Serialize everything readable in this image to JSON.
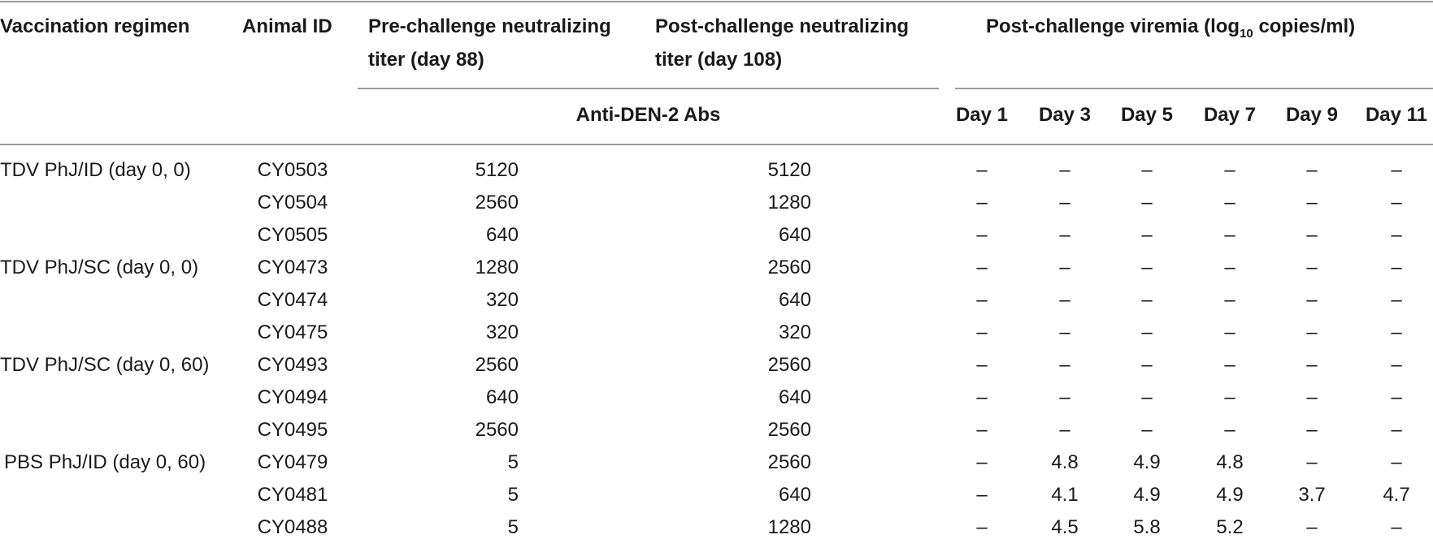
{
  "headers": {
    "regimen": "Vaccination regimen",
    "animal": "Animal ID",
    "pre_line1": "Pre-challenge neutralizing",
    "pre_line2": "titer (day 88)",
    "post_line1": "Post-challenge neutralizing",
    "post_line2": "titer (day 108)",
    "viremia_pre": "Post-challenge viremia (log",
    "viremia_sub": "10",
    "viremia_post": " copies/ml)",
    "abs": "Anti-DEN-2 Abs",
    "days": [
      "Day 1",
      "Day 3",
      "Day 5",
      "Day 7",
      "Day 9",
      "Day 11"
    ]
  },
  "rows": [
    {
      "regimen": "TDV PhJ/ID (day 0, 0)",
      "animal": "CY0503",
      "pre": "5120",
      "post": "5120",
      "v": [
        "–",
        "–",
        "–",
        "–",
        "–",
        "–"
      ]
    },
    {
      "regimen": "",
      "animal": "CY0504",
      "pre": "2560",
      "post": "1280",
      "v": [
        "–",
        "–",
        "–",
        "–",
        "–",
        "–"
      ]
    },
    {
      "regimen": "",
      "animal": "CY0505",
      "pre": "640",
      "post": "640",
      "v": [
        "–",
        "–",
        "–",
        "–",
        "–",
        "–"
      ]
    },
    {
      "regimen": "TDV PhJ/SC (day 0, 0)",
      "animal": "CY0473",
      "pre": "1280",
      "post": "2560",
      "v": [
        "–",
        "–",
        "–",
        "–",
        "–",
        "–"
      ]
    },
    {
      "regimen": "",
      "animal": "CY0474",
      "pre": "320",
      "post": "640",
      "v": [
        "–",
        "–",
        "–",
        "–",
        "–",
        "–"
      ]
    },
    {
      "regimen": "",
      "animal": "CY0475",
      "pre": "320",
      "post": "320",
      "v": [
        "–",
        "–",
        "–",
        "–",
        "–",
        "–"
      ]
    },
    {
      "regimen": "TDV PhJ/SC (day 0, 60)",
      "animal": "CY0493",
      "pre": "2560",
      "post": "2560",
      "v": [
        "–",
        "–",
        "–",
        "–",
        "–",
        "–"
      ]
    },
    {
      "regimen": "",
      "animal": "CY0494",
      "pre": "640",
      "post": "640",
      "v": [
        "–",
        "–",
        "–",
        "–",
        "–",
        "–"
      ]
    },
    {
      "regimen": "",
      "animal": "CY0495",
      "pre": "2560",
      "post": "2560",
      "v": [
        "–",
        "–",
        "–",
        "–",
        "–",
        "–"
      ]
    },
    {
      "regimen": "PBS PhJ/ID (day 0, 60)",
      "animal": "CY0479",
      "pre": "5",
      "post": "2560",
      "v": [
        "–",
        "4.8",
        "4.9",
        "4.8",
        "–",
        "–"
      ]
    },
    {
      "regimen": "",
      "animal": "CY0481",
      "pre": "5",
      "post": "640",
      "v": [
        "–",
        "4.1",
        "4.9",
        "4.9",
        "3.7",
        "4.7"
      ]
    },
    {
      "regimen": "",
      "animal": "CY0488",
      "pre": "5",
      "post": "1280",
      "v": [
        "–",
        "4.5",
        "5.8",
        "5.2",
        "–",
        "–"
      ]
    }
  ]
}
